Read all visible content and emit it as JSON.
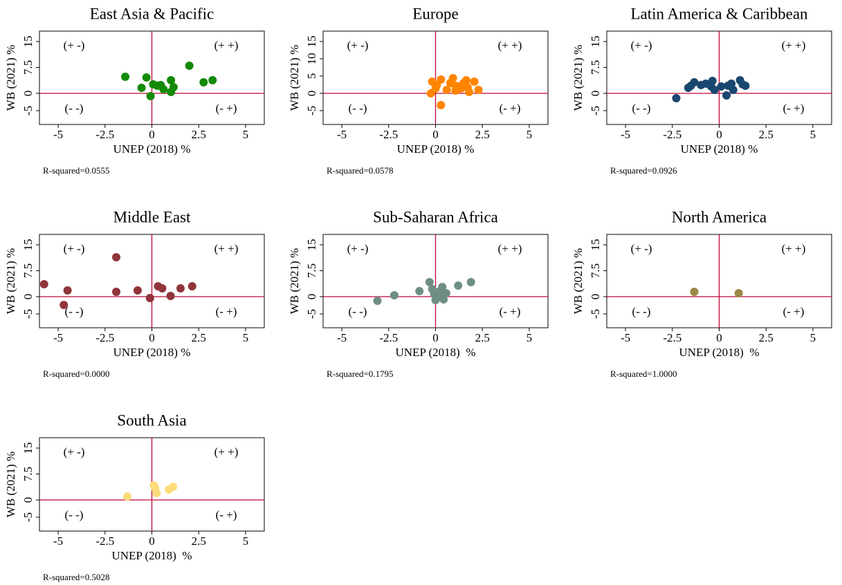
{
  "chart_data": [
    {
      "type": "scatter",
      "title": "East Asia & Pacific",
      "xlabel": "UNEP (2018) %",
      "ylabel": "WB (2021) %",
      "note": "R-squared=0.0555",
      "quadrant_labels": [
        "(+ -)",
        "(+ +)",
        "(- -)",
        "(- +)"
      ],
      "color": "#138a07",
      "x": [
        -1.42,
        -0.55,
        -0.29,
        -0.07,
        0.07,
        0.29,
        0.47,
        0.62,
        1.02,
        1.02,
        1.16,
        2.0,
        2.76,
        3.24
      ],
      "values": [
        4.8,
        1.6,
        4.6,
        -0.8,
        2.6,
        2.2,
        2.4,
        1.2,
        3.8,
        0.4,
        1.8,
        8.0,
        3.2,
        3.8
      ],
      "xlim": [
        -6,
        6
      ],
      "ylim": [
        -9,
        18
      ],
      "xticks": [
        -5,
        -2.5,
        0,
        2.5,
        5
      ],
      "yticks": [
        -5,
        0,
        7.5,
        15
      ],
      "xline": 0,
      "yline": 0,
      "refline_color": "#c10534"
    },
    {
      "type": "scatter",
      "title": "Europe",
      "xlabel": "UNEP (2018) %",
      "ylabel": "WB (2021) %",
      "note": "R-squared=0.0578",
      "quadrant_labels": [
        "(+ -)",
        "(+ +)",
        "(- -)",
        "(- +)"
      ],
      "color": "#ff8500",
      "x": [
        0.29,
        0.29,
        -0.18,
        -0.25,
        0.0,
        0.07,
        0.6,
        0.93,
        1.07,
        1.25,
        1.36,
        1.5,
        1.64,
        1.71,
        1.79,
        2.07,
        2.29,
        1.07,
        0.79
      ],
      "values": [
        -3.4,
        4.0,
        3.4,
        0.0,
        1.4,
        2.4,
        1.0,
        4.4,
        0.8,
        2.0,
        1.4,
        3.0,
        3.8,
        1.8,
        0.4,
        3.4,
        1.0,
        2.2,
        3.0
      ],
      "xlim": [
        -6,
        6
      ],
      "ylim": [
        -9,
        18
      ],
      "xticks": [
        -5,
        -2.5,
        0,
        2.5,
        5
      ],
      "yticks": [
        -5,
        0,
        5,
        10,
        15
      ],
      "xline": 0,
      "yline": 0,
      "refline_color": "#c10534"
    },
    {
      "type": "scatter",
      "title": "Latin America & Caribbean",
      "xlabel": "UNEP (2018) %",
      "ylabel": "WB (2021) %",
      "note": "R-squared=0.0926",
      "quadrant_labels": [
        "(+ -)",
        "(+ +)",
        "(- -)",
        "(- +)"
      ],
      "color": "#1a476f",
      "x": [
        -2.29,
        -1.65,
        -1.51,
        -1.33,
        -0.97,
        -0.72,
        -0.43,
        -0.36,
        -0.25,
        0.11,
        0.39,
        0.65,
        0.75,
        1.11,
        1.25,
        1.4,
        0.47
      ],
      "values": [
        -1.4,
        1.6,
        2.2,
        3.2,
        2.4,
        2.8,
        2.0,
        3.6,
        1.0,
        2.0,
        -0.6,
        2.8,
        1.0,
        3.8,
        2.6,
        2.2,
        2.2
      ],
      "xlim": [
        -6,
        6
      ],
      "ylim": [
        -9,
        18
      ],
      "xticks": [
        -5,
        -2.5,
        0,
        2.5,
        5
      ],
      "yticks": [
        -5,
        0,
        7.5,
        15
      ],
      "xline": 0,
      "yline": 0,
      "refline_color": "#c10534"
    },
    {
      "type": "scatter",
      "title": "Middle East",
      "xlabel": "UNEP (2018) %",
      "ylabel": "WB (2021) %",
      "note": "R-squared=0.0000",
      "quadrant_labels": [
        "(+ -)",
        "(+ +)",
        "(- -)",
        "(- +)"
      ],
      "color": "#90353b",
      "x": [
        -5.75,
        -4.7,
        -4.5,
        -1.9,
        -1.9,
        -0.76,
        -0.1,
        0.33,
        0.55,
        1.0,
        1.53,
        2.15
      ],
      "values": [
        3.6,
        -2.4,
        1.8,
        11.4,
        1.4,
        1.8,
        -0.4,
        3.0,
        2.4,
        0.2,
        2.4,
        3.0
      ],
      "xlim": [
        -6,
        6
      ],
      "ylim": [
        -9,
        18
      ],
      "xticks": [
        -5,
        -2.5,
        0,
        2.5,
        5
      ],
      "yticks": [
        -5,
        0,
        7.5,
        15
      ],
      "xline": 0,
      "yline": 0,
      "refline_color": "#c10534"
    },
    {
      "type": "scatter",
      "title": "Sub-Saharan Africa",
      "xlabel": "UNEP (2018)  %",
      "ylabel": "WB (2021) %",
      "note": "R-squared=0.1795",
      "quadrant_labels": [
        "(+ -)",
        "(+ +)",
        "(- -)",
        "(- +)"
      ],
      "color": "#6e8e84",
      "x": [
        -3.1,
        -2.2,
        -0.86,
        -0.32,
        -0.18,
        -0.07,
        0.07,
        0.18,
        0.36,
        0.43,
        0.57,
        1.21,
        1.89,
        0.0,
        0.25
      ],
      "values": [
        -1.2,
        0.4,
        1.6,
        4.2,
        2.2,
        0.8,
        -0.2,
        1.4,
        2.8,
        -0.8,
        1.0,
        3.2,
        4.2,
        -1.0,
        0.2
      ],
      "xlim": [
        -6,
        6
      ],
      "ylim": [
        -9,
        18
      ],
      "xticks": [
        -5,
        -2.5,
        0,
        2.5,
        5
      ],
      "yticks": [
        -5,
        0,
        7.5,
        15
      ],
      "xline": 0,
      "yline": 0,
      "refline_color": "#c10534"
    },
    {
      "type": "scatter",
      "title": "North America",
      "xlabel": "UNEP (2018)  %",
      "ylabel": "WB (2021) %",
      "note": "R-squared=1.0000",
      "quadrant_labels": [
        "(+ -)",
        "(+ +)",
        "(- -)",
        "(- +)"
      ],
      "color": "#9c8847",
      "x": [
        -1.33,
        1.04
      ],
      "values": [
        1.4,
        1.0
      ],
      "xlim": [
        -6,
        6
      ],
      "ylim": [
        -9,
        18
      ],
      "xticks": [
        -5,
        -2.5,
        0,
        2.5,
        5
      ],
      "yticks": [
        -5,
        0,
        7.5,
        15
      ],
      "xline": 0,
      "yline": 0,
      "refline_color": "#c10534"
    },
    {
      "type": "scatter",
      "title": "South Asia",
      "xlabel": "UNEP (2018)  %",
      "ylabel": "WB (2021) %",
      "note": "R-squared=0.5028",
      "quadrant_labels": [
        "(+ -)",
        "(+ +)",
        "(- -)",
        "(- +)"
      ],
      "color": "#fddc7a",
      "x": [
        -1.31,
        0.11,
        0.25,
        0.91,
        1.13,
        0.18
      ],
      "values": [
        1.0,
        4.2,
        2.0,
        3.0,
        3.8,
        3.4
      ],
      "xlim": [
        -6,
        6
      ],
      "ylim": [
        -9,
        18
      ],
      "xticks": [
        -5,
        -2.5,
        0,
        2.5,
        5
      ],
      "yticks": [
        -5,
        0,
        7.5,
        15
      ],
      "xline": 0,
      "yline": 0,
      "refline_color": "#c10534"
    }
  ]
}
